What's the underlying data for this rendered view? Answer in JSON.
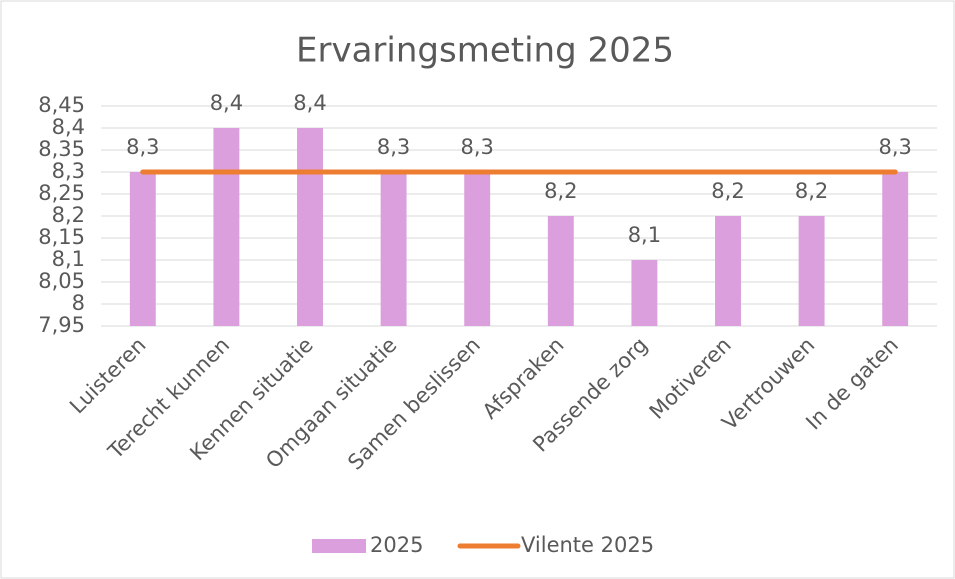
{
  "chart_data": {
    "type": "bar",
    "title": "Ervaringsmeting 2025",
    "categories": [
      "Luisteren",
      "Terecht kunnen",
      "Kennen situatie",
      "Omgaan situatie",
      "Samen beslissen",
      "Afspraken",
      "Passende zorg",
      "Motiveren",
      "Vertrouwen",
      "In de gaten"
    ],
    "series": [
      {
        "name": "2025",
        "type": "bar",
        "color": "#da9fdc",
        "values": [
          8.3,
          8.4,
          8.4,
          8.3,
          8.3,
          8.2,
          8.1,
          8.2,
          8.2,
          8.3
        ],
        "value_labels": [
          "8,3",
          "8,4",
          "8,4",
          "8,3",
          "8,3",
          "8,2",
          "8,1",
          "8,2",
          "8,2",
          "8,3"
        ]
      },
      {
        "name": "Vilente 2025",
        "type": "line",
        "color": "#ed7d31",
        "values": [
          8.3,
          8.3,
          8.3,
          8.3,
          8.3,
          8.3,
          8.3,
          8.3,
          8.3,
          8.3
        ]
      }
    ],
    "ylim": [
      7.95,
      8.45
    ],
    "yticks": [
      {
        "value": 7.95,
        "label": "7,95"
      },
      8,
      {
        "value": 8.05,
        "label": "8,05"
      },
      {
        "value": 8.1,
        "label": "8,1"
      },
      {
        "value": 8.15,
        "label": "8,15"
      },
      {
        "value": 8.2,
        "label": "8,2"
      },
      {
        "value": 8.25,
        "label": "8,25"
      },
      {
        "value": 8.3,
        "label": "8,3"
      },
      {
        "value": 8.35,
        "label": "8,35"
      },
      {
        "value": 8.4,
        "label": "8,4"
      },
      {
        "value": 8.45,
        "label": "8,45"
      }
    ],
    "grid": true,
    "legend": "bottom"
  }
}
